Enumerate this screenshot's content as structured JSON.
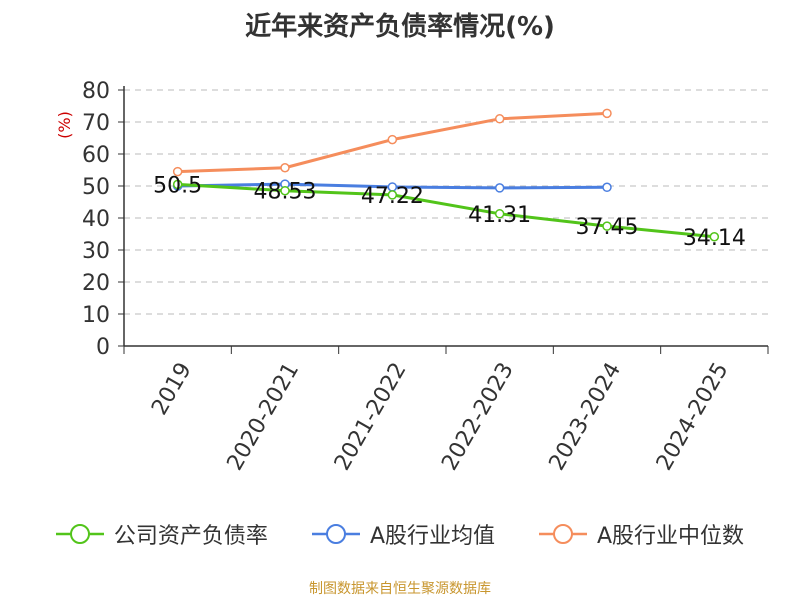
{
  "title": "近年来资产负债率情况(%)",
  "source": "制图数据来自恒生聚源数据库",
  "legend": [
    {
      "label": "公司资产负债率",
      "color": "#52c41a"
    },
    {
      "label": "A股行业均值",
      "color": "#4a7ee0"
    },
    {
      "label": "A股行业中位数",
      "color": "#f58d5c"
    }
  ],
  "chart_data": {
    "type": "line",
    "title": "近年来资产负债率情况(%)",
    "ylabel": "(%)",
    "xlabel": "",
    "ylim": [
      0,
      80
    ],
    "yticks": [
      0,
      10,
      20,
      30,
      40,
      50,
      60,
      70,
      80
    ],
    "grid": true,
    "legend_position": "bottom",
    "categories": [
      "2019",
      "2020-2021",
      "2021-2022",
      "2022-2023",
      "2023-2024",
      "2024-2025"
    ],
    "series": [
      {
        "name": "公司资产负债率",
        "color": "#52c41a",
        "values": [
          50.5,
          48.53,
          47.22,
          41.31,
          37.45,
          34.14
        ],
        "labels": [
          "50.5",
          "48.53",
          "47.22",
          "41.31",
          "37.45",
          "34.14"
        ]
      },
      {
        "name": "A股行业均值",
        "color": "#4a7ee0",
        "values": [
          50.0,
          50.6,
          49.7,
          49.4,
          49.6,
          null
        ]
      },
      {
        "name": "A股行业中位数",
        "color": "#f58d5c",
        "values": [
          54.5,
          55.7,
          64.5,
          71.0,
          72.7,
          null
        ]
      }
    ]
  }
}
